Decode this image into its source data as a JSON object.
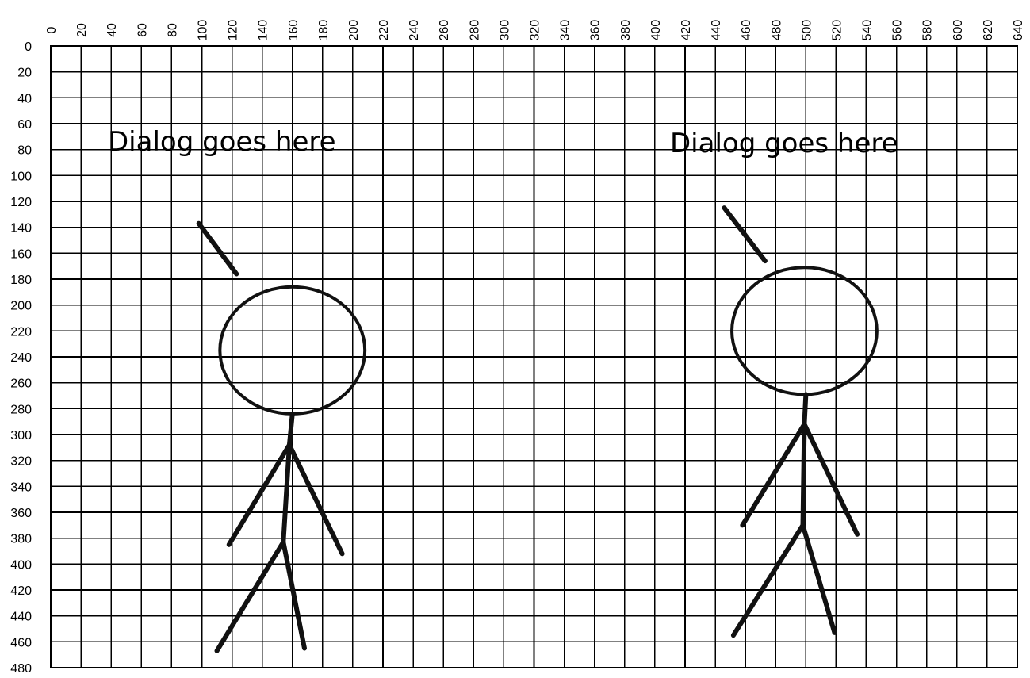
{
  "grid": {
    "x_range": [
      0,
      640
    ],
    "y_range": [
      0,
      480
    ],
    "x_step": 20,
    "y_step": 20,
    "x_tick_labels": [
      "0",
      "20",
      "40",
      "60",
      "80",
      "100",
      "120",
      "140",
      "160",
      "180",
      "200",
      "220",
      "240",
      "260",
      "280",
      "300",
      "320",
      "340",
      "360",
      "380",
      "400",
      "420",
      "440",
      "460",
      "480",
      "500",
      "520",
      "540",
      "560",
      "580",
      "600",
      "620",
      "640"
    ],
    "y_tick_labels": [
      "0",
      "20",
      "40",
      "60",
      "80",
      "100",
      "120",
      "140",
      "160",
      "180",
      "200",
      "220",
      "240",
      "260",
      "280",
      "300",
      "320",
      "340",
      "360",
      "380",
      "400",
      "420",
      "440",
      "460",
      "480"
    ]
  },
  "figures": [
    {
      "name": "left",
      "dialog_text": "Dialog goes here",
      "pointer": [
        [
          98,
          137
        ],
        [
          123,
          176
        ]
      ],
      "head": {
        "cx": 160,
        "cy": 235,
        "rx": 48,
        "ry": 49
      },
      "neck": [
        [
          160,
          284
        ],
        [
          158,
          308
        ]
      ],
      "arms": [
        [
          [
            158,
            308
          ],
          [
            118,
            385
          ]
        ],
        [
          [
            158,
            308
          ],
          [
            193,
            392
          ]
        ]
      ],
      "body": [
        [
          158,
          308
        ],
        [
          154,
          383
        ]
      ],
      "legs": [
        [
          [
            154,
            383
          ],
          [
            110,
            467
          ]
        ],
        [
          [
            154,
            383
          ],
          [
            168,
            465
          ]
        ]
      ]
    },
    {
      "name": "right",
      "dialog_text": "Dialog goes here",
      "pointer": [
        [
          446,
          125
        ],
        [
          473,
          166
        ]
      ],
      "head": {
        "cx": 499,
        "cy": 220,
        "rx": 48,
        "ry": 49
      },
      "neck": [
        [
          500,
          269
        ],
        [
          499,
          292
        ]
      ],
      "arms": [
        [
          [
            499,
            292
          ],
          [
            458,
            370
          ]
        ],
        [
          [
            499,
            292
          ],
          [
            534,
            377
          ]
        ]
      ],
      "body": [
        [
          499,
          292
        ],
        [
          498,
          370
        ]
      ],
      "legs": [
        [
          [
            498,
            370
          ],
          [
            452,
            455
          ]
        ],
        [
          [
            498,
            370
          ],
          [
            519,
            453
          ]
        ]
      ]
    }
  ],
  "colors": {
    "background": "#ffffff",
    "grid_line": "#000000",
    "figure_stroke": "#111111"
  }
}
